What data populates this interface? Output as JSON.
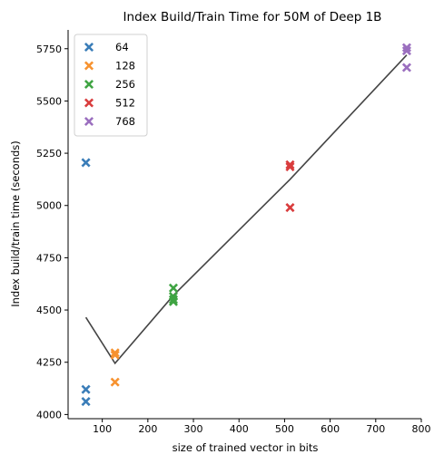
{
  "chart_data": {
    "type": "scatter",
    "title": "Index Build/Train Time for 50M of Deep 1B",
    "xlabel": "size of trained vector in bits",
    "ylabel": "Index build/train time (seconds)",
    "xlim": [
      25,
      800
    ],
    "ylim": [
      3980,
      5840
    ],
    "xticks": [
      100,
      200,
      300,
      400,
      500,
      600,
      700,
      800
    ],
    "yticks": [
      4000,
      4250,
      4500,
      4750,
      5000,
      5250,
      5500,
      5750
    ],
    "legend_position": "top-left",
    "grid": false,
    "marker": "x",
    "series": [
      {
        "name": "64",
        "color": "#3a7db8",
        "points": [
          [
            64,
            5205
          ],
          [
            64,
            4120
          ],
          [
            64,
            4062
          ]
        ]
      },
      {
        "name": "128",
        "color": "#f7922f",
        "points": [
          [
            128,
            4295
          ],
          [
            128,
            4285
          ],
          [
            128,
            4155
          ]
        ]
      },
      {
        "name": "256",
        "color": "#3fa443",
        "points": [
          [
            256,
            4605
          ],
          [
            256,
            4565
          ],
          [
            256,
            4550
          ],
          [
            256,
            4540
          ]
        ]
      },
      {
        "name": "512",
        "color": "#d93c3d",
        "points": [
          [
            512,
            5195
          ],
          [
            512,
            5185
          ],
          [
            512,
            4990
          ]
        ]
      },
      {
        "name": "768",
        "color": "#9b6fbf",
        "points": [
          [
            768,
            5755
          ],
          [
            768,
            5740
          ],
          [
            768,
            5660
          ]
        ]
      }
    ],
    "line": {
      "color": "#444444",
      "points": [
        [
          64,
          4465
        ],
        [
          128,
          4245
        ],
        [
          256,
          4570
        ],
        [
          512,
          5125
        ],
        [
          768,
          5720
        ]
      ]
    }
  }
}
